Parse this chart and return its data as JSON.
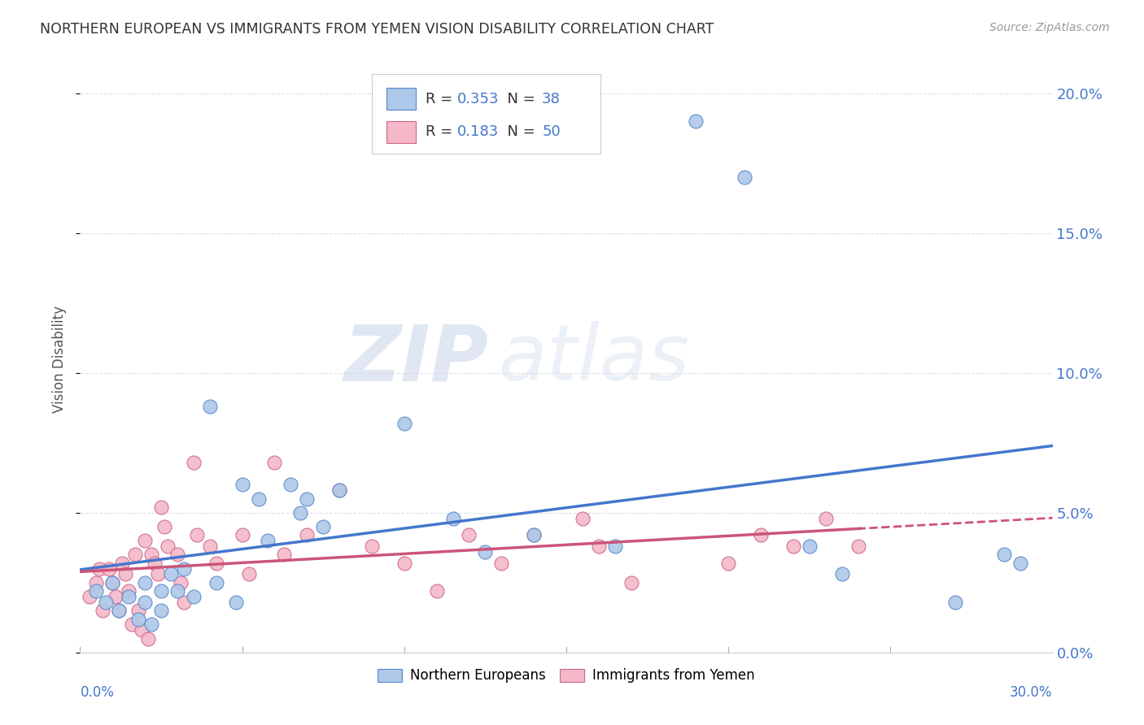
{
  "title": "NORTHERN EUROPEAN VS IMMIGRANTS FROM YEMEN VISION DISABILITY CORRELATION CHART",
  "source": "Source: ZipAtlas.com",
  "ylabel": "Vision Disability",
  "xlim": [
    0.0,
    0.3
  ],
  "ylim": [
    0.0,
    0.21
  ],
  "watermark_zip": "ZIP",
  "watermark_atlas": "atlas",
  "blue_label": "Northern Europeans",
  "pink_label": "Immigrants from Yemen",
  "blue_R": "0.353",
  "blue_N": "38",
  "pink_R": "0.183",
  "pink_N": "50",
  "blue_color": "#adc8e8",
  "blue_edge_color": "#5588cc",
  "blue_line_color": "#4477cc",
  "pink_color": "#f4b8c8",
  "pink_edge_color": "#cc6688",
  "pink_line_color": "#cc5577",
  "ytick_vals": [
    0.0,
    0.05,
    0.1,
    0.15,
    0.2
  ],
  "ytick_labels": [
    "0.0%",
    "5.0%",
    "10.0%",
    "15.0%",
    "20.0%"
  ],
  "xtick_label_left": "0.0%",
  "xtick_label_right": "30.0%",
  "background_color": "#ffffff",
  "grid_color": "#e0e0e8",
  "blue_scatter_x": [
    0.005,
    0.008,
    0.01,
    0.012,
    0.015,
    0.018,
    0.02,
    0.02,
    0.022,
    0.025,
    0.025,
    0.028,
    0.03,
    0.032,
    0.035,
    0.04,
    0.042,
    0.048,
    0.05,
    0.055,
    0.058,
    0.065,
    0.068,
    0.07,
    0.075,
    0.08,
    0.1,
    0.115,
    0.125,
    0.14,
    0.165,
    0.19,
    0.205,
    0.225,
    0.235,
    0.27,
    0.285,
    0.29
  ],
  "blue_scatter_y": [
    0.022,
    0.018,
    0.025,
    0.015,
    0.02,
    0.012,
    0.025,
    0.018,
    0.01,
    0.022,
    0.015,
    0.028,
    0.022,
    0.03,
    0.02,
    0.088,
    0.025,
    0.018,
    0.06,
    0.055,
    0.04,
    0.06,
    0.05,
    0.055,
    0.045,
    0.058,
    0.082,
    0.048,
    0.036,
    0.042,
    0.038,
    0.19,
    0.17,
    0.038,
    0.028,
    0.018,
    0.035,
    0.032
  ],
  "pink_scatter_x": [
    0.003,
    0.005,
    0.006,
    0.007,
    0.009,
    0.01,
    0.011,
    0.012,
    0.013,
    0.014,
    0.015,
    0.016,
    0.017,
    0.018,
    0.019,
    0.02,
    0.021,
    0.022,
    0.023,
    0.024,
    0.025,
    0.026,
    0.027,
    0.03,
    0.031,
    0.032,
    0.035,
    0.036,
    0.04,
    0.042,
    0.05,
    0.052,
    0.06,
    0.063,
    0.07,
    0.08,
    0.09,
    0.1,
    0.11,
    0.12,
    0.13,
    0.14,
    0.155,
    0.16,
    0.17,
    0.2,
    0.21,
    0.22,
    0.23,
    0.24
  ],
  "pink_scatter_y": [
    0.02,
    0.025,
    0.03,
    0.015,
    0.03,
    0.025,
    0.02,
    0.015,
    0.032,
    0.028,
    0.022,
    0.01,
    0.035,
    0.015,
    0.008,
    0.04,
    0.005,
    0.035,
    0.032,
    0.028,
    0.052,
    0.045,
    0.038,
    0.035,
    0.025,
    0.018,
    0.068,
    0.042,
    0.038,
    0.032,
    0.042,
    0.028,
    0.068,
    0.035,
    0.042,
    0.058,
    0.038,
    0.032,
    0.022,
    0.042,
    0.032,
    0.042,
    0.048,
    0.038,
    0.025,
    0.032,
    0.042,
    0.038,
    0.048,
    0.038
  ],
  "accent_color": "#4477cc"
}
